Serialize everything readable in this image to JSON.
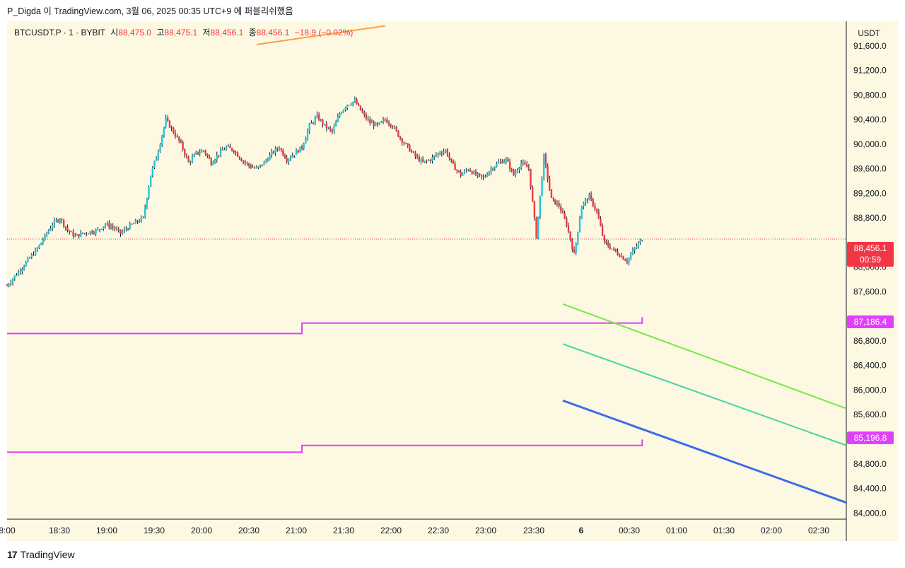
{
  "header": {
    "publish_text": "P_Digda 이 TradingView.com, 3월 06, 2025 00:35 UTC+9 에 퍼블리쉬했음"
  },
  "legend": {
    "symbol": "BTCUSDT.P · 1 · BYBIT",
    "open_label": "시",
    "open": "88,475.0",
    "high_label": "고",
    "high": "88,475.1",
    "low_label": "저",
    "low": "88,456.1",
    "close_label": "종",
    "close": "88,456.1",
    "change": "−18.9 (−0.02%)"
  },
  "price_scale": {
    "currency": "USDT",
    "current_price": "88,456.1",
    "countdown": "00:59",
    "upper_level": "87,186.4",
    "lower_level": "85,196.8"
  },
  "colors": {
    "background": "#fdf8e1",
    "up_candle": "#26c6da",
    "down_candle": "#f23645",
    "wick": "#131722",
    "level_line": "#e040fb",
    "current_price": "#f23645",
    "trend_orange": "#ff9f40",
    "trend_green": "#76e84a",
    "trend_teal": "#3fd6a4",
    "trend_blue": "#3d6be8"
  },
  "footer": {
    "brand": "TradingView"
  },
  "chart_data": {
    "type": "candlestick",
    "symbol": "BTCUSDT.P",
    "interval": "1",
    "exchange": "BYBIT",
    "ylim": [
      83900,
      92000
    ],
    "y_ticks": [
      84000,
      84400,
      84800,
      85200,
      85600,
      86000,
      86400,
      86800,
      87200,
      87600,
      88000,
      88400,
      88800,
      89200,
      89600,
      90000,
      90400,
      90800,
      91200,
      91600
    ],
    "y_tick_labels": [
      "84,000.0",
      "84,400.0",
      "84,800.0",
      "85,200.0",
      "85,600.0",
      "86,000.0",
      "86,400.0",
      "86,800.0",
      "87,200.0",
      "87,600.0",
      "88,000.0",
      "88,400.0",
      "88,800.0",
      "89,200.0",
      "89,600.0",
      "90,000.0",
      "90,400.0",
      "90,800.0",
      "91,200.0",
      "91,600.0"
    ],
    "y_tick_labels_visible": [
      "84,000.0",
      "84,400.0",
      "84,800.0",
      "85,600.0",
      "86,000.0",
      "86,400.0",
      "86,800.0",
      "87,600.0",
      "88,000.0",
      "88,800.0",
      "89,200.0",
      "89,600.0",
      "90,000.0",
      "90,400.0",
      "90,800.0",
      "91,200.0",
      "91,600.0"
    ],
    "x_ticks": [
      "8:00",
      "18:30",
      "19:00",
      "19:30",
      "20:00",
      "20:30",
      "21:00",
      "21:30",
      "22:00",
      "22:30",
      "23:00",
      "23:30",
      "6",
      "00:30",
      "01:00",
      "01:30",
      "02:00",
      "02:30"
    ],
    "x_tick_bold": [
      false,
      false,
      false,
      false,
      false,
      false,
      false,
      false,
      false,
      false,
      false,
      false,
      true,
      false,
      false,
      false,
      false,
      false
    ],
    "price_path": [
      [
        0,
        87700
      ],
      [
        4,
        88000
      ],
      [
        8,
        88300
      ],
      [
        12,
        88700
      ],
      [
        14,
        88800
      ],
      [
        16,
        88600
      ],
      [
        18,
        88500
      ],
      [
        20,
        88550
      ],
      [
        24,
        88600
      ],
      [
        26,
        88700
      ],
      [
        28,
        88650
      ],
      [
        30,
        88550
      ],
      [
        32,
        88650
      ],
      [
        36,
        88800
      ],
      [
        38,
        89500
      ],
      [
        40,
        89900
      ],
      [
        42,
        90400
      ],
      [
        44,
        90200
      ],
      [
        46,
        90000
      ],
      [
        48,
        89700
      ],
      [
        50,
        89850
      ],
      [
        52,
        89900
      ],
      [
        54,
        89700
      ],
      [
        56,
        89850
      ],
      [
        58,
        89950
      ],
      [
        60,
        89900
      ],
      [
        62,
        89750
      ],
      [
        64,
        89650
      ],
      [
        66,
        89600
      ],
      [
        68,
        89700
      ],
      [
        70,
        89850
      ],
      [
        72,
        89950
      ],
      [
        74,
        89750
      ],
      [
        76,
        89850
      ],
      [
        78,
        89950
      ],
      [
        80,
        90300
      ],
      [
        82,
        90450
      ],
      [
        84,
        90300
      ],
      [
        86,
        90200
      ],
      [
        88,
        90500
      ],
      [
        90,
        90650
      ],
      [
        92,
        90700
      ],
      [
        94,
        90500
      ],
      [
        96,
        90350
      ],
      [
        98,
        90300
      ],
      [
        100,
        90400
      ],
      [
        102,
        90300
      ],
      [
        104,
        90100
      ],
      [
        106,
        89950
      ],
      [
        108,
        89800
      ],
      [
        110,
        89700
      ],
      [
        112,
        89750
      ],
      [
        114,
        89850
      ],
      [
        116,
        89900
      ],
      [
        118,
        89650
      ],
      [
        120,
        89500
      ],
      [
        122,
        89600
      ],
      [
        124,
        89500
      ],
      [
        126,
        89450
      ],
      [
        128,
        89600
      ],
      [
        130,
        89700
      ],
      [
        132,
        89750
      ],
      [
        134,
        89500
      ],
      [
        136,
        89700
      ],
      [
        138,
        89600
      ],
      [
        140,
        88500
      ],
      [
        142,
        89800
      ],
      [
        144,
        89100
      ],
      [
        146,
        89000
      ],
      [
        148,
        88700
      ],
      [
        150,
        88200
      ],
      [
        152,
        89000
      ],
      [
        154,
        89150
      ],
      [
        156,
        88900
      ],
      [
        158,
        88400
      ],
      [
        160,
        88300
      ],
      [
        162,
        88200
      ],
      [
        164,
        88100
      ],
      [
        166,
        88300
      ],
      [
        168,
        88456
      ]
    ],
    "series": [
      {
        "name": "87,186.4",
        "type": "level",
        "steps": [
          [
            0,
            86920
          ],
          [
            78,
            86920
          ],
          [
            78,
            87090
          ],
          [
            168,
            87090
          ],
          [
            168,
            87186
          ]
        ]
      },
      {
        "name": "85,196.8",
        "type": "level",
        "steps": [
          [
            0,
            84990
          ],
          [
            78,
            84990
          ],
          [
            78,
            85100
          ],
          [
            168,
            85100
          ],
          [
            168,
            85197
          ]
        ]
      }
    ],
    "trend_lines": [
      {
        "color": "orange",
        "from": [
          66,
          91620
        ],
        "to": [
          100,
          91925
        ]
      },
      {
        "color": "green",
        "from": [
          147,
          87400
        ],
        "to": [
          222,
          85700
        ]
      },
      {
        "color": "teal",
        "from": [
          147,
          86750
        ],
        "to": [
          222,
          85100
        ]
      },
      {
        "color": "blue",
        "from": [
          147,
          85830
        ],
        "to": [
          222,
          84170
        ]
      }
    ],
    "current_price": 88456.1,
    "grid": false
  }
}
